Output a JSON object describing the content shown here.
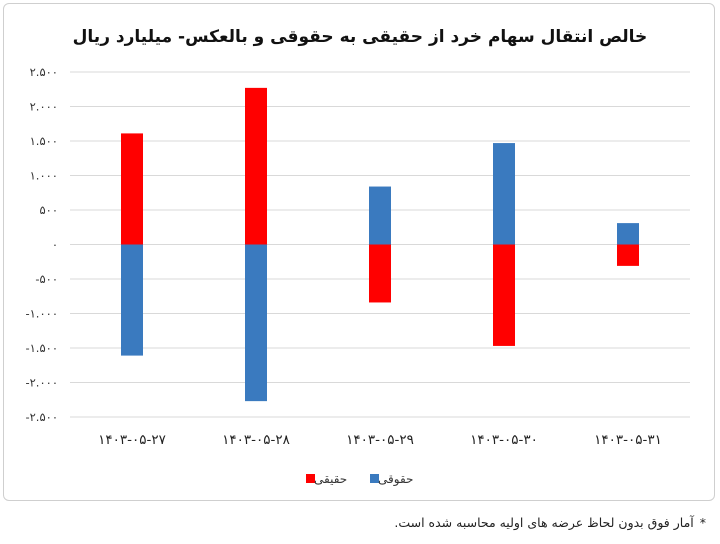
{
  "chart_data": {
    "type": "bar",
    "title": "خالص انتقال سهام خرد از حقیقی به حقوقی و بالعکس- میلیارد ریال",
    "categories": [
      "۱۴۰۳-۰۵-۲۷",
      "۱۴۰۳-۰۵-۲۸",
      "۱۴۰۳-۰۵-۲۹",
      "۱۴۰۳-۰۵-۳۰",
      "۱۴۰۳-۰۵-۳۱"
    ],
    "series": [
      {
        "name": "حقیقی",
        "color": "#ff0000",
        "values": [
          1610,
          2270,
          -840,
          -1470,
          -310
        ]
      },
      {
        "name": "حقوقی",
        "color": "#3a7abf",
        "values": [
          -1610,
          -2270,
          840,
          1470,
          310
        ]
      }
    ],
    "ylim": [
      -2500,
      2500
    ],
    "yticks": [
      2500,
      2000,
      1500,
      1000,
      500,
      0,
      -500,
      -1000,
      -1500,
      -2000,
      -2500
    ],
    "ytick_labels": [
      "۲.۵۰۰",
      "۲.۰۰۰",
      "۱.۵۰۰",
      "۱.۰۰۰",
      "۵۰۰",
      "۰",
      "-۵۰۰",
      "-۱.۰۰۰",
      "-۱.۵۰۰",
      "-۲.۰۰۰",
      "-۲.۵۰۰"
    ],
    "grid": true,
    "legend_position": "bottom-center",
    "stacked": true
  },
  "footnote": {
    "marker": "*",
    "text": "آمار فوق بدون لحاظ عرضه های اولیه محاسبه شده است."
  }
}
